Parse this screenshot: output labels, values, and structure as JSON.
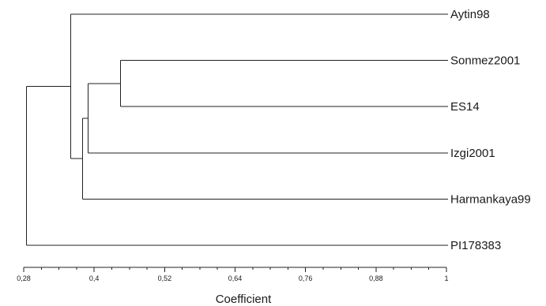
{
  "dendrogram": {
    "axis_title": "Coefficient",
    "axis_min": 0.28,
    "axis_max": 1,
    "ticks": [
      {
        "value": 0.28,
        "label": "0,28"
      },
      {
        "value": 0.4,
        "label": "0,4"
      },
      {
        "value": 0.52,
        "label": "0,52"
      },
      {
        "value": 0.64,
        "label": "0,64"
      },
      {
        "value": 0.76,
        "label": "0,76"
      },
      {
        "value": 0.88,
        "label": "0,88"
      },
      {
        "value": 1,
        "label": "1"
      }
    ],
    "leaves": [
      "Aytin98",
      "Sonmez2001",
      "ES14",
      "Izgi2001",
      "Harmankaya99",
      "PI178383"
    ],
    "merges": [
      {
        "members": [
          "Sonmez2001",
          "ES14"
        ],
        "coefficient": 0.445
      },
      {
        "members": [
          "Sonmez2001",
          "ES14",
          "Izgi2001"
        ],
        "coefficient": 0.39
      },
      {
        "members": [
          "Sonmez2001",
          "ES14",
          "Izgi2001",
          "Harmankaya99"
        ],
        "coefficient": 0.38
      },
      {
        "members": [
          "Aytin98",
          "Sonmez2001",
          "ES14",
          "Izgi2001",
          "Harmankaya99"
        ],
        "coefficient": 0.36
      },
      {
        "members": [
          "Aytin98",
          "Sonmez2001",
          "ES14",
          "Izgi2001",
          "Harmankaya99",
          "PI178383"
        ],
        "coefficient": 0.285
      }
    ]
  }
}
